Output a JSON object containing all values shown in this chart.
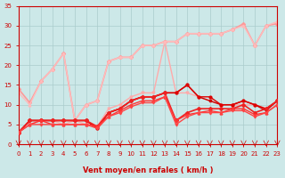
{
  "background_color": "#cce8e8",
  "grid_color": "#aacccc",
  "x_label": "Vent moyen/en rafales ( km/h )",
  "xlim": [
    0,
    23
  ],
  "ylim": [
    0,
    35
  ],
  "yticks": [
    0,
    5,
    10,
    15,
    20,
    25,
    30,
    35
  ],
  "xticks": [
    0,
    1,
    2,
    3,
    4,
    5,
    6,
    7,
    8,
    9,
    10,
    11,
    12,
    13,
    14,
    15,
    16,
    17,
    18,
    19,
    20,
    21,
    22,
    23
  ],
  "series_light": [
    {
      "x": [
        0,
        1,
        2,
        3,
        4,
        5,
        6,
        7,
        8,
        9,
        10,
        11,
        12,
        13,
        14,
        15,
        16,
        17,
        18,
        19,
        20,
        21,
        22,
        23
      ],
      "y": [
        14,
        10.5,
        16,
        19,
        23,
        6,
        10,
        11,
        21,
        22,
        22,
        25,
        25,
        26,
        26,
        28,
        28,
        28,
        28,
        29,
        30.5,
        25,
        30,
        30.5
      ],
      "color": "#ff9999",
      "lw": 1.2,
      "marker": "D",
      "ms": 2
    },
    {
      "x": [
        0,
        1,
        2,
        3,
        4,
        5,
        6,
        7,
        8,
        9,
        10,
        11,
        12,
        13,
        14,
        15,
        16,
        17,
        18,
        19,
        20,
        21,
        22,
        23
      ],
      "y": [
        3,
        5,
        6,
        6,
        5,
        6,
        5,
        4.5,
        9,
        10,
        12,
        13,
        13,
        26,
        13,
        13,
        12,
        11,
        10,
        10,
        10,
        10,
        9,
        11
      ],
      "color": "#ffaaaa",
      "lw": 1.0,
      "marker": "v",
      "ms": 2
    },
    {
      "x": [
        0,
        1,
        2,
        3,
        4,
        5,
        6,
        7,
        8,
        9,
        10,
        11,
        12,
        13,
        14,
        15,
        16,
        17,
        18,
        19,
        20,
        21,
        22,
        23
      ],
      "y": [
        13,
        10,
        16,
        19,
        23,
        6,
        10,
        11,
        21,
        22,
        22,
        25,
        25,
        26,
        26,
        28,
        28,
        28,
        28,
        29,
        30,
        25,
        30,
        31
      ],
      "color": "#ffbbbb",
      "lw": 1.0,
      "marker": "^",
      "ms": 2
    }
  ],
  "series_dark": [
    {
      "x": [
        0,
        1,
        2,
        3,
        4,
        5,
        6,
        7,
        8,
        9,
        10,
        11,
        12,
        13,
        14,
        15,
        16,
        17,
        18,
        19,
        20,
        21,
        22,
        23
      ],
      "y": [
        3,
        6,
        6,
        6,
        6,
        6,
        6,
        4,
        8,
        9,
        11,
        12,
        12,
        13,
        13,
        15,
        12,
        11,
        10,
        10,
        11,
        10,
        8.5,
        11
      ],
      "color": "#cc0000",
      "lw": 1.0,
      "marker": "s",
      "ms": 2
    },
    {
      "x": [
        0,
        1,
        2,
        3,
        4,
        5,
        6,
        7,
        8,
        9,
        10,
        11,
        12,
        13,
        14,
        15,
        16,
        17,
        18,
        19,
        20,
        21,
        22,
        23
      ],
      "y": [
        3,
        6,
        6,
        6,
        6,
        6,
        6,
        4,
        8,
        9,
        11,
        12,
        12,
        13,
        13,
        15,
        12,
        12,
        10,
        10,
        11,
        10,
        9,
        11
      ],
      "color": "#dd0000",
      "lw": 1.0,
      "marker": "o",
      "ms": 2
    },
    {
      "x": [
        0,
        1,
        2,
        3,
        4,
        5,
        6,
        7,
        8,
        9,
        10,
        11,
        12,
        13,
        14,
        15,
        16,
        17,
        18,
        19,
        20,
        21,
        22,
        23
      ],
      "y": [
        3,
        6,
        6,
        6,
        6,
        6,
        6,
        4.5,
        8,
        9,
        11,
        12,
        12,
        13,
        6,
        8,
        9,
        9,
        9,
        9,
        10,
        8,
        9,
        11
      ],
      "color": "#ee2222",
      "lw": 1.2,
      "marker": "D",
      "ms": 2
    },
    {
      "x": [
        0,
        1,
        2,
        3,
        4,
        5,
        6,
        7,
        8,
        9,
        10,
        11,
        12,
        13,
        14,
        15,
        16,
        17,
        18,
        19,
        20,
        21,
        22,
        23
      ],
      "y": [
        3,
        5,
        6,
        5,
        5,
        5,
        5,
        4.5,
        7,
        8.5,
        10,
        11,
        11,
        12,
        6,
        7.5,
        8,
        8.5,
        8,
        9,
        9,
        7.5,
        8,
        10
      ],
      "color": "#ff3333",
      "lw": 1.0,
      "marker": "^",
      "ms": 2
    },
    {
      "x": [
        0,
        1,
        2,
        3,
        4,
        5,
        6,
        7,
        8,
        9,
        10,
        11,
        12,
        13,
        14,
        15,
        16,
        17,
        18,
        19,
        20,
        21,
        22,
        23
      ],
      "y": [
        3,
        5,
        5,
        5,
        5,
        5,
        5,
        4,
        7,
        8,
        9.5,
        10.5,
        10.5,
        12,
        5,
        7,
        8,
        8,
        8,
        8.5,
        8.5,
        7,
        8,
        10
      ],
      "color": "#ff4444",
      "lw": 1.0,
      "marker": "v",
      "ms": 2
    }
  ],
  "arrow_color": "#cc0000",
  "label_color": "#cc0000",
  "tick_color": "#cc0000",
  "axis_color": "#cc0000"
}
